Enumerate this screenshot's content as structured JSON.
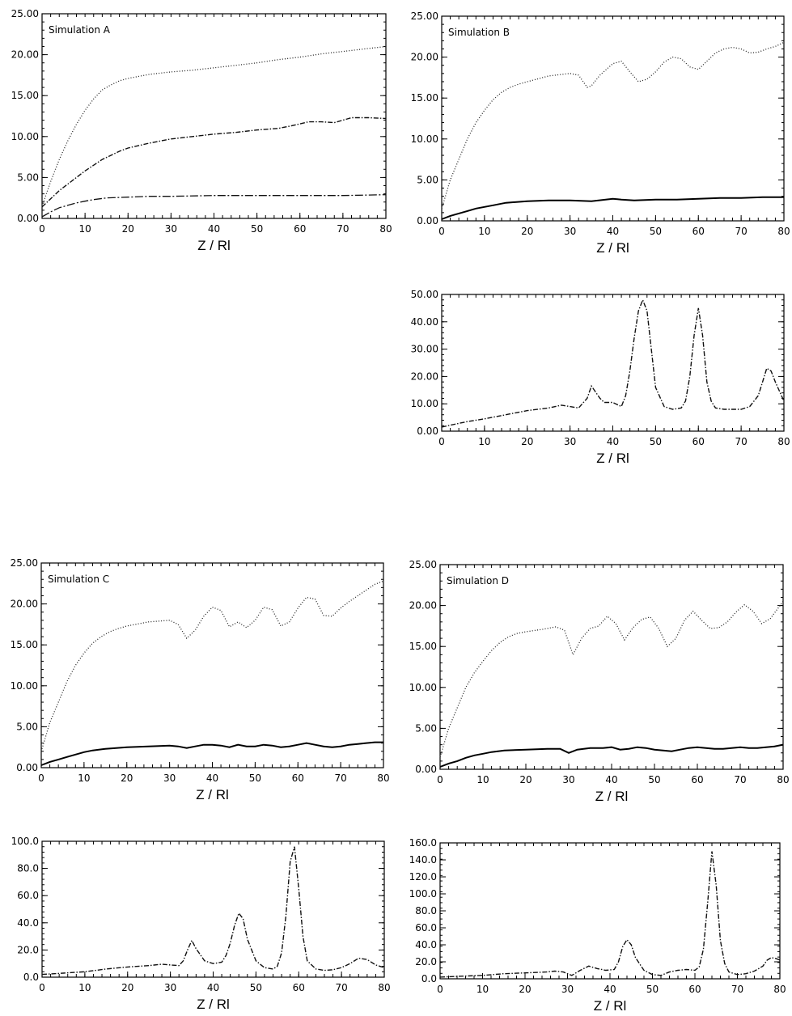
{
  "chart_data": [
    {
      "id": "sim-a",
      "type": "line",
      "title": "Simulation A",
      "xlabel": "Z / Rl",
      "xlim": [
        0,
        80
      ],
      "ylim": [
        0,
        25
      ],
      "xticks": [
        "0",
        "10",
        "20",
        "30",
        "40",
        "50",
        "60",
        "70",
        "80"
      ],
      "yticks": [
        "0.00",
        "5.00",
        "10.00",
        "15.00",
        "20.00",
        "25.00"
      ],
      "series": [
        {
          "style": "dotted",
          "x": [
            0,
            2,
            4,
            6,
            8,
            10,
            12,
            14,
            16,
            18,
            20,
            25,
            30,
            35,
            40,
            45,
            50,
            55,
            60,
            65,
            70,
            75,
            80
          ],
          "y": [
            1.5,
            4.5,
            7.2,
            9.5,
            11.5,
            13.2,
            14.6,
            15.7,
            16.3,
            16.8,
            17.1,
            17.6,
            17.9,
            18.1,
            18.4,
            18.7,
            19.0,
            19.4,
            19.7,
            20.1,
            20.4,
            20.7,
            21.0
          ]
        },
        {
          "style": "dashdot",
          "x": [
            0,
            2,
            4,
            6,
            8,
            10,
            12,
            14,
            16,
            18,
            20,
            25,
            30,
            35,
            40,
            45,
            50,
            55,
            58,
            62,
            65,
            68,
            72,
            76,
            80
          ],
          "y": [
            1.4,
            2.4,
            3.4,
            4.2,
            5.0,
            5.8,
            6.5,
            7.2,
            7.7,
            8.2,
            8.6,
            9.2,
            9.7,
            10.0,
            10.3,
            10.5,
            10.8,
            11.0,
            11.3,
            11.8,
            11.8,
            11.7,
            12.3,
            12.3,
            12.2
          ]
        },
        {
          "style": "longdash",
          "x": [
            0,
            2,
            4,
            6,
            8,
            10,
            12,
            15,
            20,
            25,
            30,
            40,
            50,
            60,
            70,
            80
          ],
          "y": [
            0.2,
            0.8,
            1.3,
            1.6,
            1.9,
            2.1,
            2.3,
            2.5,
            2.6,
            2.7,
            2.7,
            2.8,
            2.8,
            2.8,
            2.8,
            2.9
          ]
        }
      ]
    },
    {
      "id": "sim-b-top",
      "type": "line",
      "title": "Simulation B",
      "xlabel": "Z / Rl",
      "xlim": [
        0,
        80
      ],
      "ylim": [
        0,
        25
      ],
      "xticks": [
        "0",
        "10",
        "20",
        "30",
        "40",
        "50",
        "60",
        "70",
        "80"
      ],
      "yticks": [
        "0.00",
        "5.00",
        "10.00",
        "15.00",
        "20.00",
        "25.00"
      ],
      "series": [
        {
          "style": "dotted",
          "x": [
            0,
            2,
            4,
            6,
            8,
            10,
            12,
            14,
            16,
            18,
            20,
            25,
            30,
            32,
            34,
            35,
            37,
            40,
            42,
            44,
            46,
            48,
            50,
            52,
            54,
            56,
            58,
            60,
            62,
            64,
            66,
            68,
            70,
            72,
            74,
            76,
            78,
            80
          ],
          "y": [
            1.5,
            5.0,
            7.5,
            10.0,
            12.0,
            13.5,
            14.8,
            15.7,
            16.3,
            16.7,
            17.0,
            17.7,
            18.0,
            17.8,
            16.3,
            16.5,
            17.8,
            19.2,
            19.5,
            18.2,
            17.0,
            17.3,
            18.2,
            19.4,
            20.0,
            19.8,
            18.8,
            18.5,
            19.5,
            20.5,
            21.0,
            21.2,
            21.0,
            20.5,
            20.6,
            21.0,
            21.3,
            21.8
          ]
        },
        {
          "style": "solid",
          "x": [
            0,
            2,
            4,
            6,
            8,
            10,
            12,
            15,
            20,
            25,
            30,
            35,
            40,
            42,
            45,
            50,
            55,
            60,
            65,
            70,
            75,
            80
          ],
          "y": [
            0.2,
            0.6,
            0.9,
            1.2,
            1.5,
            1.7,
            1.9,
            2.2,
            2.4,
            2.5,
            2.5,
            2.4,
            2.7,
            2.6,
            2.5,
            2.6,
            2.6,
            2.7,
            2.8,
            2.8,
            2.9,
            2.9
          ]
        }
      ]
    },
    {
      "id": "sim-b-bottom",
      "type": "line",
      "title": "",
      "xlabel": "Z / Rl",
      "xlim": [
        0,
        80
      ],
      "ylim": [
        0,
        50
      ],
      "xticks": [
        "0",
        "10",
        "20",
        "30",
        "40",
        "50",
        "60",
        "70",
        "80"
      ],
      "yticks": [
        "0.00",
        "10.00",
        "20.00",
        "30.00",
        "40.00",
        "50.00"
      ],
      "series": [
        {
          "style": "dashdot",
          "x": [
            0,
            3,
            6,
            10,
            15,
            20,
            25,
            28,
            30,
            32,
            34,
            35,
            37,
            38,
            40,
            42,
            43,
            44,
            45,
            46,
            47,
            48,
            49,
            50,
            52,
            54,
            56,
            57,
            58,
            59,
            60,
            61,
            62,
            63,
            64,
            66,
            68,
            70,
            72,
            74,
            75,
            76,
            77,
            78,
            80
          ],
          "y": [
            1.5,
            2.5,
            3.5,
            4.5,
            6.0,
            7.5,
            8.5,
            9.5,
            9.0,
            8.5,
            12.0,
            16.5,
            12.0,
            10.5,
            10.5,
            9.0,
            13.0,
            22.0,
            34.0,
            44.0,
            48.0,
            44.0,
            30.0,
            16.0,
            9.0,
            8.0,
            8.5,
            11.0,
            20.0,
            35.0,
            45.0,
            35.0,
            18.0,
            11.0,
            8.5,
            8.0,
            8.0,
            8.0,
            9.0,
            13.0,
            18.0,
            23.0,
            22.0,
            18.0,
            11.0
          ]
        }
      ]
    },
    {
      "id": "sim-c-top",
      "type": "line",
      "title": "Simulation C",
      "xlabel": "Z / Rl",
      "xlim": [
        0,
        80
      ],
      "ylim": [
        0,
        25
      ],
      "xticks": [
        "0",
        "10",
        "20",
        "30",
        "40",
        "50",
        "60",
        "70",
        "80"
      ],
      "yticks": [
        "0.00",
        "5.00",
        "10.00",
        "15.00",
        "20.00",
        "25.00"
      ],
      "series": [
        {
          "style": "dotted",
          "x": [
            0,
            2,
            4,
            6,
            8,
            10,
            12,
            14,
            16,
            18,
            20,
            25,
            30,
            32,
            34,
            36,
            38,
            40,
            42,
            44,
            46,
            48,
            50,
            52,
            54,
            56,
            58,
            60,
            62,
            64,
            66,
            68,
            70,
            72,
            74,
            76,
            78,
            80
          ],
          "y": [
            2.0,
            5.5,
            8.0,
            10.5,
            12.5,
            14.0,
            15.2,
            16.0,
            16.6,
            17.0,
            17.3,
            17.8,
            18.0,
            17.5,
            15.8,
            16.8,
            18.5,
            19.6,
            19.2,
            17.2,
            17.8,
            17.1,
            18.0,
            19.6,
            19.3,
            17.3,
            17.8,
            19.5,
            20.8,
            20.6,
            18.6,
            18.5,
            19.5,
            20.3,
            21.0,
            21.7,
            22.4,
            22.8
          ]
        },
        {
          "style": "solid",
          "x": [
            0,
            2,
            4,
            6,
            8,
            10,
            12,
            15,
            20,
            25,
            30,
            32,
            34,
            36,
            38,
            40,
            42,
            44,
            46,
            48,
            50,
            52,
            54,
            56,
            58,
            60,
            62,
            64,
            66,
            68,
            70,
            72,
            74,
            76,
            78,
            80
          ],
          "y": [
            0.3,
            0.7,
            1.0,
            1.3,
            1.6,
            1.9,
            2.1,
            2.3,
            2.5,
            2.6,
            2.7,
            2.6,
            2.4,
            2.6,
            2.8,
            2.8,
            2.7,
            2.5,
            2.8,
            2.6,
            2.6,
            2.8,
            2.7,
            2.5,
            2.6,
            2.8,
            3.0,
            2.8,
            2.6,
            2.5,
            2.6,
            2.8,
            2.9,
            3.0,
            3.1,
            3.1
          ]
        }
      ]
    },
    {
      "id": "sim-c-bottom",
      "type": "line",
      "title": "",
      "xlabel": "Z / Rl",
      "xlim": [
        0,
        80
      ],
      "ylim": [
        0,
        100
      ],
      "xticks": [
        "0",
        "10",
        "20",
        "30",
        "40",
        "50",
        "60",
        "70",
        "80"
      ],
      "yticks": [
        "0.0",
        "20.0",
        "40.0",
        "60.0",
        "80.0",
        "100.0"
      ],
      "series": [
        {
          "style": "dashdot",
          "x": [
            0,
            5,
            10,
            15,
            20,
            25,
            28,
            30,
            32,
            33,
            34,
            35,
            36,
            38,
            40,
            42,
            43,
            44,
            45,
            46,
            47,
            48,
            50,
            52,
            54,
            55,
            56,
            57,
            58,
            59,
            60,
            61,
            62,
            64,
            66,
            68,
            70,
            72,
            74,
            76,
            78,
            80
          ],
          "y": [
            2.0,
            3.0,
            4.0,
            6.0,
            7.5,
            8.5,
            9.5,
            9.0,
            8.5,
            12.0,
            20.0,
            27.0,
            21.0,
            12.0,
            10.0,
            11.0,
            16.0,
            25.0,
            38.0,
            47.0,
            43.0,
            28.0,
            12.0,
            7.0,
            6.0,
            8.0,
            18.0,
            45.0,
            85.0,
            96.0,
            65.0,
            30.0,
            12.0,
            6.0,
            5.0,
            5.5,
            7.0,
            10.0,
            14.0,
            13.0,
            9.0,
            7.0
          ]
        }
      ]
    },
    {
      "id": "sim-d-top",
      "type": "line",
      "title": "Simulation D",
      "xlabel": "Z / Rl",
      "xlim": [
        0,
        80
      ],
      "ylim": [
        0,
        25
      ],
      "xticks": [
        "0",
        "10",
        "20",
        "30",
        "40",
        "50",
        "60",
        "70",
        "80"
      ],
      "yticks": [
        "0.00",
        "5.00",
        "10.00",
        "15.00",
        "20.00",
        "25.00"
      ],
      "series": [
        {
          "style": "dotted",
          "x": [
            0,
            2,
            4,
            6,
            8,
            10,
            12,
            14,
            16,
            18,
            20,
            24,
            27,
            29,
            31,
            33,
            35,
            37,
            39,
            41,
            43,
            45,
            47,
            49,
            51,
            53,
            55,
            57,
            59,
            61,
            63,
            65,
            67,
            69,
            71,
            73,
            75,
            77,
            79,
            80
          ],
          "y": [
            1.5,
            5.0,
            7.5,
            10.0,
            11.8,
            13.2,
            14.5,
            15.5,
            16.2,
            16.6,
            16.8,
            17.1,
            17.4,
            17.0,
            14.0,
            16.0,
            17.2,
            17.5,
            18.7,
            17.8,
            15.8,
            17.3,
            18.3,
            18.6,
            17.2,
            15.0,
            16.0,
            18.2,
            19.3,
            18.2,
            17.2,
            17.3,
            18.0,
            19.2,
            20.1,
            19.3,
            17.8,
            18.4,
            19.8,
            20.5
          ]
        },
        {
          "style": "solid",
          "x": [
            0,
            2,
            4,
            6,
            8,
            10,
            12,
            15,
            20,
            25,
            28,
            30,
            32,
            35,
            38,
            40,
            42,
            44,
            46,
            48,
            50,
            52,
            54,
            56,
            58,
            60,
            62,
            64,
            66,
            68,
            70,
            72,
            74,
            76,
            78,
            80
          ],
          "y": [
            0.3,
            0.7,
            1.0,
            1.4,
            1.7,
            1.9,
            2.1,
            2.3,
            2.4,
            2.5,
            2.5,
            2.0,
            2.4,
            2.6,
            2.6,
            2.7,
            2.4,
            2.5,
            2.7,
            2.6,
            2.4,
            2.3,
            2.2,
            2.4,
            2.6,
            2.7,
            2.6,
            2.5,
            2.5,
            2.6,
            2.7,
            2.6,
            2.6,
            2.7,
            2.8,
            3.0
          ]
        }
      ]
    },
    {
      "id": "sim-d-bottom",
      "type": "line",
      "title": "",
      "xlabel": "Z / Rl",
      "xlim": [
        0,
        80
      ],
      "ylim": [
        0,
        160
      ],
      "xticks": [
        "0",
        "10",
        "20",
        "30",
        "40",
        "50",
        "60",
        "70",
        "80"
      ],
      "yticks": [
        "0.0",
        "20.0",
        "40.0",
        "60.0",
        "80.0",
        "100.0",
        "120.0",
        "140.0",
        "160.0"
      ],
      "series": [
        {
          "style": "dashdot",
          "x": [
            0,
            5,
            10,
            15,
            20,
            25,
            27,
            29,
            31,
            33,
            35,
            37,
            39,
            41,
            42,
            43,
            44,
            45,
            46,
            48,
            50,
            52,
            54,
            56,
            58,
            60,
            61,
            62,
            63,
            64,
            65,
            66,
            67,
            68,
            70,
            72,
            74,
            76,
            77,
            78,
            79,
            80
          ],
          "y": [
            2.0,
            3.0,
            4.0,
            6.0,
            7.0,
            8.0,
            9.0,
            8.0,
            4.0,
            10.0,
            15.0,
            12.0,
            10.0,
            11.0,
            20.0,
            38.0,
            46.0,
            40.0,
            25.0,
            10.0,
            5.0,
            4.0,
            8.0,
            10.0,
            11.0,
            10.0,
            14.0,
            35.0,
            90.0,
            150.0,
            110.0,
            45.0,
            18.0,
            8.0,
            5.0,
            6.0,
            9.0,
            15.0,
            22.0,
            25.0,
            24.0,
            22.0
          ]
        }
      ]
    }
  ]
}
